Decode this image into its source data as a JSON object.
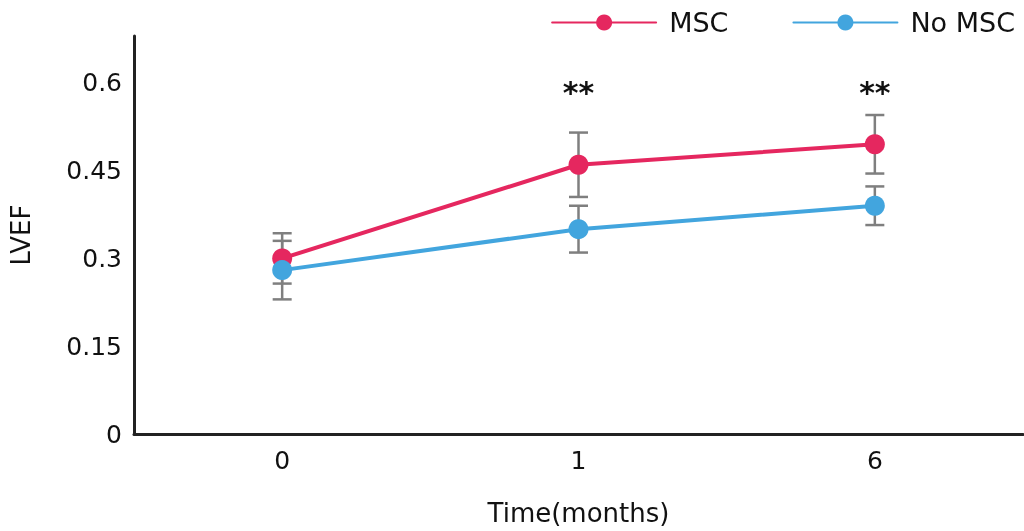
{
  "chart_data": {
    "type": "line",
    "xlabel": "Time(months)",
    "ylabel": "LVEF",
    "categories": [
      "0",
      "1",
      "6"
    ],
    "series": [
      {
        "name": "MSC",
        "color": "#e5275f",
        "values": [
          0.3,
          0.46,
          0.495
        ],
        "errors": [
          0.043,
          0.055,
          0.05
        ]
      },
      {
        "name": "No MSC",
        "color": "#42a5de",
        "values": [
          0.28,
          0.35,
          0.39
        ],
        "errors": [
          0.05,
          0.04,
          0.033
        ]
      }
    ],
    "ylim": [
      0,
      0.68
    ],
    "yticks": [
      0,
      0.15,
      0.3,
      0.45,
      0.6
    ],
    "annotations": [
      "**",
      "**"
    ],
    "legend": "top right",
    "marker": "circle",
    "line_style": "solid"
  }
}
